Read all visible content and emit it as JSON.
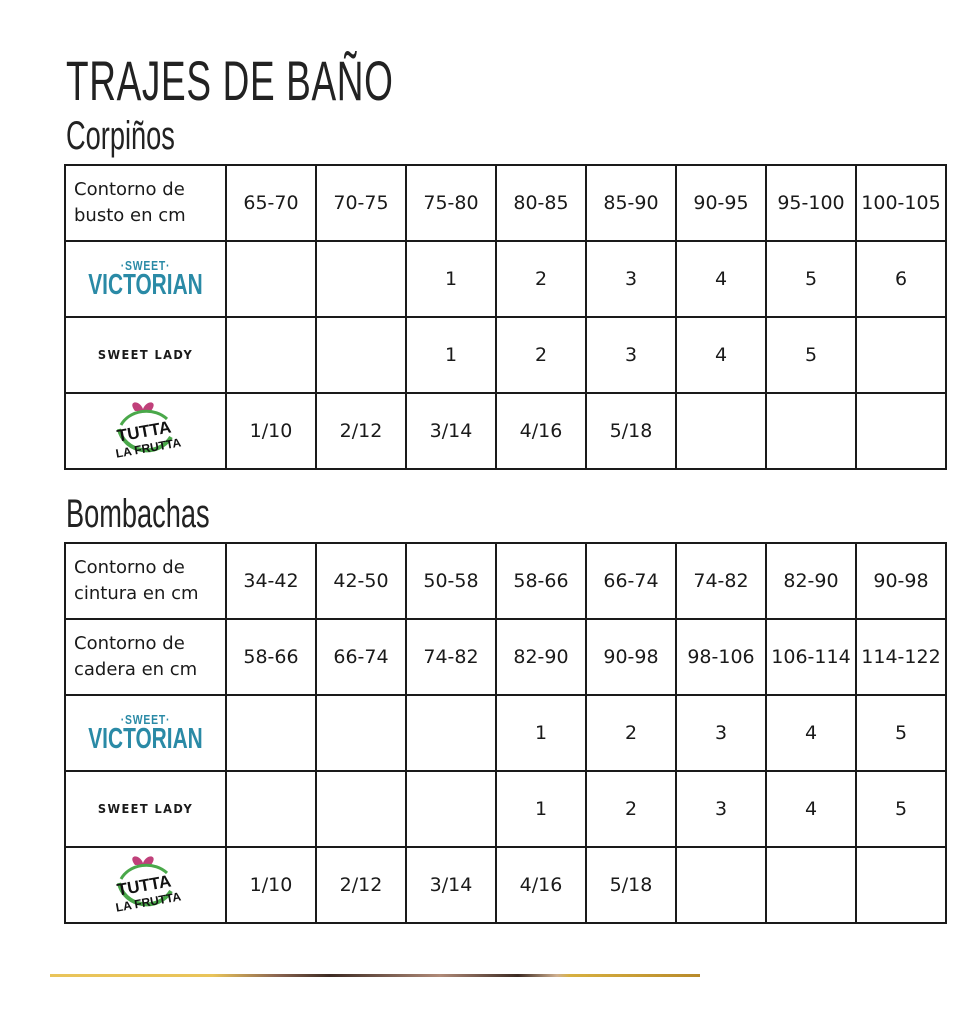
{
  "title": "TRAJES DE BAÑO",
  "corpinos": {
    "heading": "Corpiños",
    "header": {
      "label": "Contorno de busto en cm",
      "sizes": [
        "65-70",
        "70-75",
        "75-80",
        "80-85",
        "85-90",
        "90-95",
        "95-100",
        "100-105"
      ]
    },
    "rows": [
      {
        "brand": "Sweet Victorian",
        "values": [
          "",
          "",
          "1",
          "2",
          "3",
          "4",
          "5",
          "6"
        ]
      },
      {
        "brand": "Sweet Lady",
        "values": [
          "",
          "",
          "1",
          "2",
          "3",
          "4",
          "5",
          ""
        ]
      },
      {
        "brand": "Tutta la Frutta",
        "values": [
          "1/10",
          "2/12",
          "3/14",
          "4/16",
          "5/18",
          "",
          "",
          ""
        ]
      }
    ]
  },
  "bombachas": {
    "heading": "Bombachas",
    "headers": [
      {
        "label": "Contorno de cintura en cm",
        "sizes": [
          "34-42",
          "42-50",
          "50-58",
          "58-66",
          "66-74",
          "74-82",
          "82-90",
          "90-98"
        ]
      },
      {
        "label": "Contorno de cadera en cm",
        "sizes": [
          "58-66",
          "66-74",
          "74-82",
          "82-90",
          "90-98",
          "98-106",
          "106-114",
          "114-122"
        ]
      }
    ],
    "rows": [
      {
        "brand": "Sweet Victorian",
        "values": [
          "",
          "",
          "",
          "1",
          "2",
          "3",
          "4",
          "5"
        ]
      },
      {
        "brand": "Sweet Lady",
        "values": [
          "",
          "",
          "",
          "1",
          "2",
          "3",
          "4",
          "5"
        ]
      },
      {
        "brand": "Tutta la Frutta",
        "values": [
          "1/10",
          "2/12",
          "3/14",
          "4/16",
          "5/18",
          "",
          "",
          ""
        ]
      }
    ]
  },
  "logos": {
    "sv_top": "·SWEET·",
    "sv_bottom": "VICTORIAN",
    "sl": "SWEET LADY",
    "tf_top": "TUTTA",
    "tf_bottom": "LA FRUTTA"
  },
  "colors": {
    "victorian": "#2a8aa6",
    "tutta_green": "#4aa84a",
    "tutta_pink": "#c0407a",
    "rule_gold": "#e9c45a"
  }
}
